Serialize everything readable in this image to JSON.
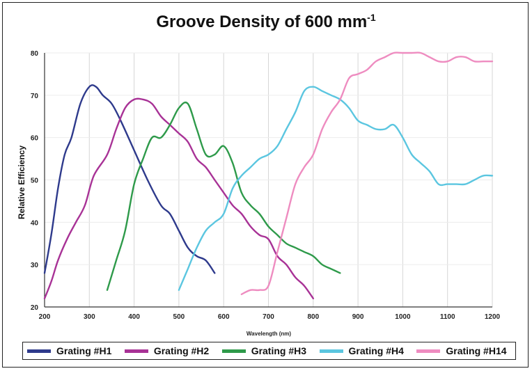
{
  "chart_data": {
    "type": "line",
    "title_main": "Groove Density of 600 mm",
    "title_sup": "-1",
    "xlabel": "Wavelength (nm)",
    "ylabel": "Relative Efficiency",
    "xlim": [
      200,
      1200
    ],
    "ylim": [
      20,
      80
    ],
    "xticks": [
      "200",
      "300",
      "400",
      "500",
      "600",
      "700",
      "800",
      "900",
      "1000",
      "1100",
      "1200"
    ],
    "yticks": [
      "20",
      "30",
      "40",
      "50",
      "60",
      "70",
      "80"
    ],
    "yticks_display": [
      "20",
      "30",
      "40",
      "50",
      "60",
      "70",
      "80"
    ],
    "grid": "vertical",
    "legend_position": "bottom",
    "series": [
      {
        "name": "Grating #H1",
        "color": "#2e3a8c",
        "x": [
          200,
          215,
          230,
          245,
          260,
          280,
          300,
          315,
          330,
          350,
          370,
          400,
          430,
          460,
          480,
          500,
          520,
          540,
          560,
          580
        ],
        "y": [
          28,
          37,
          48,
          56,
          60,
          68,
          72,
          72,
          70,
          68,
          64,
          57,
          50,
          44,
          42,
          38,
          34,
          32,
          31,
          28
        ]
      },
      {
        "name": "Grating #H2",
        "color": "#a83296",
        "x": [
          200,
          215,
          230,
          250,
          270,
          290,
          310,
          340,
          360,
          380,
          400,
          420,
          440,
          460,
          480,
          500,
          520,
          540,
          560,
          580,
          600,
          620,
          640,
          660,
          680,
          700,
          720,
          740,
          760,
          780,
          800
        ],
        "y": [
          22,
          26,
          31,
          36,
          40,
          44,
          51,
          56,
          62,
          67,
          69,
          69,
          68,
          65,
          63,
          61,
          59,
          55,
          53,
          50,
          47,
          44,
          42,
          39,
          37,
          36,
          32,
          30,
          27,
          25,
          22
        ]
      },
      {
        "name": "Grating #H3",
        "color": "#2e9a4a",
        "x": [
          340,
          360,
          380,
          400,
          420,
          440,
          460,
          480,
          500,
          520,
          540,
          560,
          580,
          600,
          620,
          640,
          660,
          680,
          700,
          720,
          740,
          760,
          780,
          800,
          820,
          840,
          860
        ],
        "y": [
          24,
          31,
          38,
          49,
          55,
          60,
          60,
          63,
          67,
          68,
          62,
          56,
          56,
          58,
          54,
          47,
          44,
          42,
          39,
          37,
          35,
          34,
          33,
          32,
          30,
          29,
          28
        ]
      },
      {
        "name": "Grating #H4",
        "color": "#5bc6e0",
        "x": [
          500,
          520,
          540,
          560,
          580,
          600,
          620,
          640,
          660,
          680,
          700,
          720,
          740,
          760,
          780,
          800,
          820,
          840,
          860,
          880,
          900,
          920,
          940,
          960,
          980,
          1000,
          1020,
          1040,
          1060,
          1080,
          1100,
          1120,
          1140,
          1160,
          1180,
          1200
        ],
        "y": [
          24,
          29,
          34,
          38,
          40,
          42,
          48,
          51,
          53,
          55,
          56,
          58,
          62,
          66,
          71,
          72,
          71,
          70,
          69,
          67,
          64,
          63,
          62,
          62,
          63,
          60,
          56,
          54,
          52,
          49,
          49,
          49,
          49,
          50,
          51,
          51
        ]
      },
      {
        "name": "Grating #H14",
        "color": "#ee8cc0",
        "x": [
          640,
          660,
          680,
          700,
          720,
          740,
          760,
          780,
          800,
          820,
          840,
          860,
          880,
          900,
          920,
          940,
          960,
          980,
          1000,
          1020,
          1040,
          1060,
          1080,
          1100,
          1120,
          1140,
          1160,
          1180,
          1200
        ],
        "y": [
          23,
          24,
          24,
          25,
          33,
          41,
          49,
          53,
          56,
          62,
          66,
          69,
          74,
          75,
          76,
          78,
          79,
          80,
          80,
          80,
          80,
          79,
          78,
          78,
          79,
          79,
          78,
          78,
          78
        ]
      }
    ]
  }
}
